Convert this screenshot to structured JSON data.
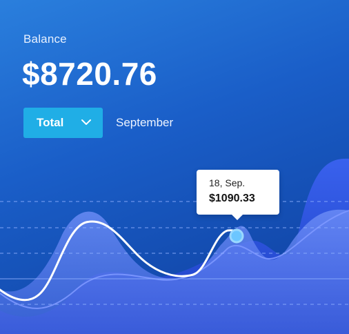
{
  "balance": {
    "label": "Balance",
    "value": "$8720.76"
  },
  "filter": {
    "selected": "Total",
    "icon": "chevron-down-icon",
    "period": "September"
  },
  "tooltip": {
    "date": "18, Sep.",
    "value": "$1090.33"
  },
  "colors": {
    "accent": "#20aee6",
    "background_top": "#2a7fdd",
    "background_bottom": "#0e3d9c",
    "line_primary": "#ffffff",
    "area_fill": "#5a7ff0",
    "gridline": "#7fa6ff"
  },
  "chart_data": {
    "type": "area",
    "title": "",
    "xlabel": "",
    "ylabel": "",
    "grid": true,
    "highlight": {
      "date": "18, Sep.",
      "value": 1090.33
    }
  }
}
